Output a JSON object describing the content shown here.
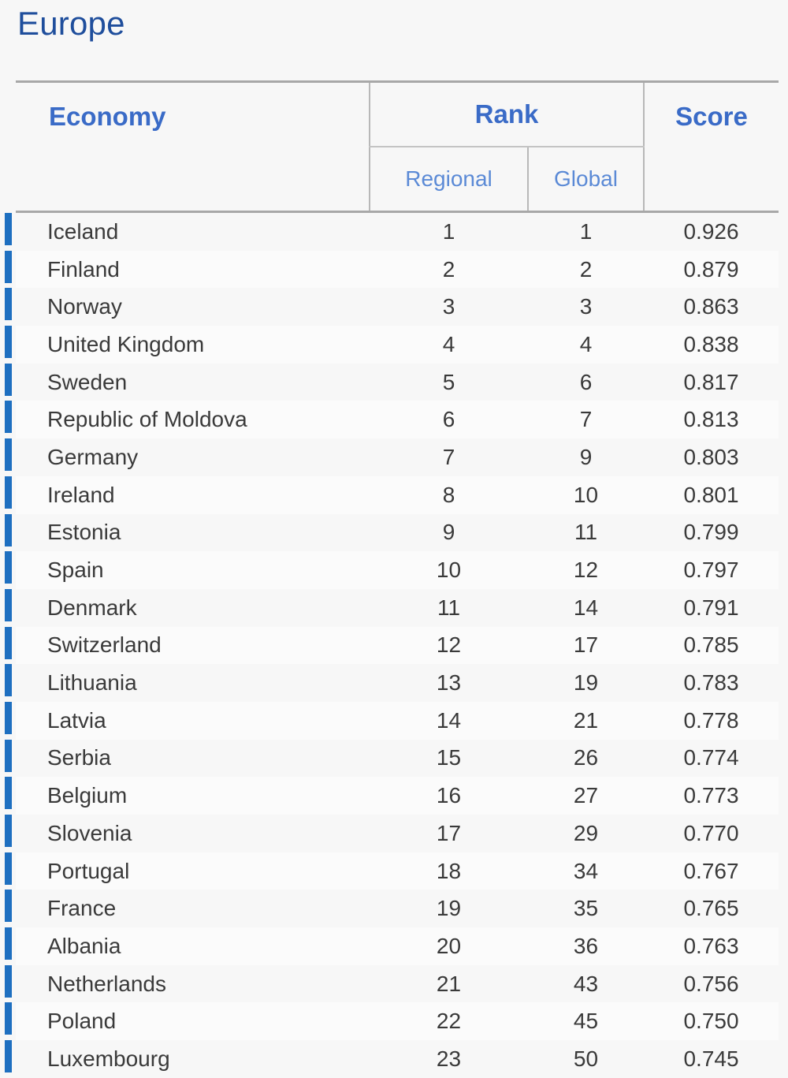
{
  "title": "Europe",
  "headers": {
    "economy": "Economy",
    "rank": "Rank",
    "regional": "Regional",
    "global": "Global",
    "score": "Score"
  },
  "accent_color": "#1e6fc0",
  "header_color": "#3a6bc7",
  "rows": [
    {
      "economy": "Iceland",
      "regional": "1",
      "global": "1",
      "score": "0.926"
    },
    {
      "economy": "Finland",
      "regional": "2",
      "global": "2",
      "score": "0.879"
    },
    {
      "economy": "Norway",
      "regional": "3",
      "global": "3",
      "score": "0.863"
    },
    {
      "economy": "United Kingdom",
      "regional": "4",
      "global": "4",
      "score": "0.838"
    },
    {
      "economy": "Sweden",
      "regional": "5",
      "global": "6",
      "score": "0.817"
    },
    {
      "economy": "Republic of Moldova",
      "regional": "6",
      "global": "7",
      "score": "0.813"
    },
    {
      "economy": "Germany",
      "regional": "7",
      "global": "9",
      "score": "0.803"
    },
    {
      "economy": "Ireland",
      "regional": "8",
      "global": "10",
      "score": "0.801"
    },
    {
      "economy": "Estonia",
      "regional": "9",
      "global": "11",
      "score": "0.799"
    },
    {
      "economy": "Spain",
      "regional": "10",
      "global": "12",
      "score": "0.797"
    },
    {
      "economy": "Denmark",
      "regional": "11",
      "global": "14",
      "score": "0.791"
    },
    {
      "economy": "Switzerland",
      "regional": "12",
      "global": "17",
      "score": "0.785"
    },
    {
      "economy": "Lithuania",
      "regional": "13",
      "global": "19",
      "score": "0.783"
    },
    {
      "economy": "Latvia",
      "regional": "14",
      "global": "21",
      "score": "0.778"
    },
    {
      "economy": "Serbia",
      "regional": "15",
      "global": "26",
      "score": "0.774"
    },
    {
      "economy": "Belgium",
      "regional": "16",
      "global": "27",
      "score": "0.773"
    },
    {
      "economy": "Slovenia",
      "regional": "17",
      "global": "29",
      "score": "0.770"
    },
    {
      "economy": "Portugal",
      "regional": "18",
      "global": "34",
      "score": "0.767"
    },
    {
      "economy": "France",
      "regional": "19",
      "global": "35",
      "score": "0.765"
    },
    {
      "economy": "Albania",
      "regional": "20",
      "global": "36",
      "score": "0.763"
    },
    {
      "economy": "Netherlands",
      "regional": "21",
      "global": "43",
      "score": "0.756"
    },
    {
      "economy": "Poland",
      "regional": "22",
      "global": "45",
      "score": "0.750"
    },
    {
      "economy": "Luxembourg",
      "regional": "23",
      "global": "50",
      "score": "0.745"
    }
  ]
}
